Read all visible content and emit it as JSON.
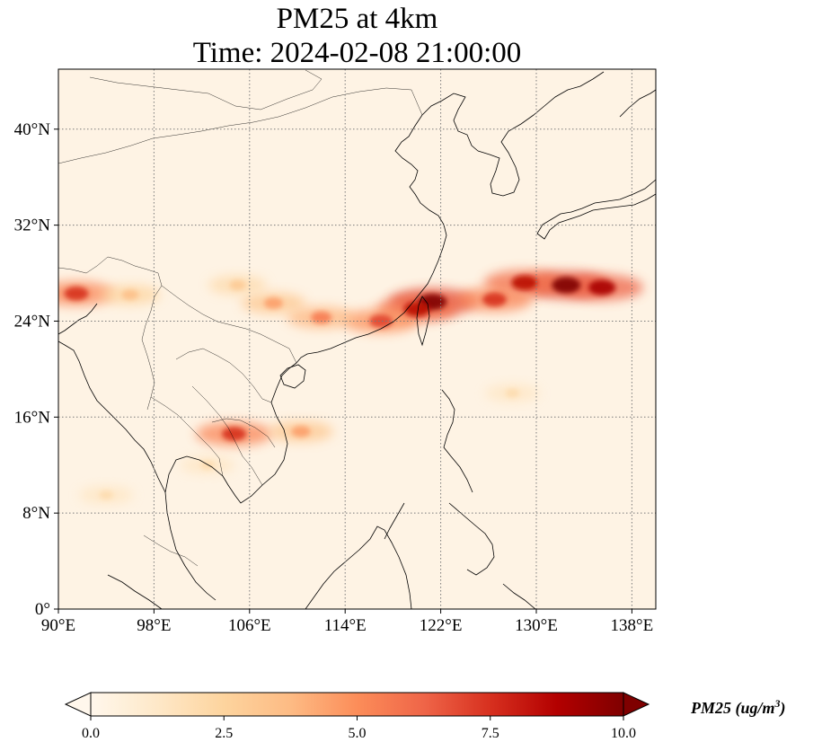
{
  "title": {
    "line1": "PM25 at 4km",
    "line2": "Time: 2024-02-08 21:00:00"
  },
  "map": {
    "lon_range": [
      90,
      140
    ],
    "lat_range": [
      0,
      45
    ],
    "lon_ticks": [
      {
        "value": 90,
        "label": "90°E"
      },
      {
        "value": 98,
        "label": "98°E"
      },
      {
        "value": 106,
        "label": "106°E"
      },
      {
        "value": 114,
        "label": "114°E"
      },
      {
        "value": 122,
        "label": "122°E"
      },
      {
        "value": 130,
        "label": "130°E"
      },
      {
        "value": 138,
        "label": "138°E"
      }
    ],
    "lat_ticks": [
      {
        "value": 0,
        "label": "0°"
      },
      {
        "value": 8,
        "label": "8°N"
      },
      {
        "value": 16,
        "label": "16°N"
      },
      {
        "value": 24,
        "label": "24°N"
      },
      {
        "value": 32,
        "label": "32°N"
      },
      {
        "value": 40,
        "label": "40°N"
      }
    ],
    "gridlines": true,
    "gridline_color": "#7a7a7a",
    "background_color": "#fef3e4",
    "coastline_color": "#000000",
    "colormap": "OrRd",
    "plumes": [
      {
        "lon": 121.3,
        "lat": 25.6,
        "value": 10.0
      },
      {
        "lon": 120.0,
        "lat": 25.0,
        "value": 8.5
      },
      {
        "lon": 117.0,
        "lat": 24.0,
        "value": 7.0
      },
      {
        "lon": 112.0,
        "lat": 24.3,
        "value": 5.5
      },
      {
        "lon": 108.0,
        "lat": 25.5,
        "value": 4.5
      },
      {
        "lon": 105.0,
        "lat": 27.0,
        "value": 3.0
      },
      {
        "lon": 132.5,
        "lat": 27.0,
        "value": 10.0
      },
      {
        "lon": 135.5,
        "lat": 26.8,
        "value": 9.0
      },
      {
        "lon": 129.0,
        "lat": 27.2,
        "value": 8.5
      },
      {
        "lon": 126.5,
        "lat": 25.8,
        "value": 7.5
      },
      {
        "lon": 91.5,
        "lat": 26.3,
        "value": 7.5
      },
      {
        "lon": 96.0,
        "lat": 26.2,
        "value": 3.5
      },
      {
        "lon": 104.7,
        "lat": 14.6,
        "value": 7.5
      },
      {
        "lon": 110.3,
        "lat": 14.8,
        "value": 4.5
      },
      {
        "lon": 94.0,
        "lat": 9.5,
        "value": 2.0
      },
      {
        "lon": 102.5,
        "lat": 12.0,
        "value": 2.0
      },
      {
        "lon": 128.0,
        "lat": 18.0,
        "value": 2.0
      }
    ]
  },
  "colorbar": {
    "min": 0.0,
    "max": 10.0,
    "extend": "both",
    "ticks": [
      "0.0",
      "2.5",
      "5.0",
      "7.5",
      "10.0"
    ],
    "label": "PM25 (ug/m³)",
    "label_text": "PM25 (ug/m",
    "label_sup": "3",
    "label_close": ")",
    "colors": [
      "#fff7ec",
      "#fee8c8",
      "#fdd49e",
      "#fdbb84",
      "#fc8d59",
      "#ef6548",
      "#d7301f",
      "#b30000",
      "#7f0000"
    ]
  }
}
